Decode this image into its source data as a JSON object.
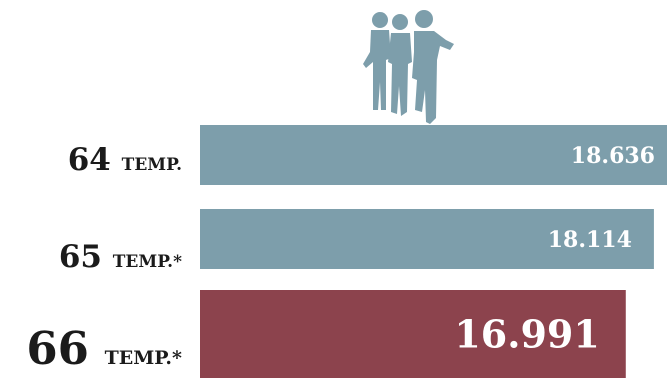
{
  "chart_data": {
    "type": "bar",
    "orientation": "horizontal",
    "categories": [
      {
        "num": "64",
        "suffix": "TEMP."
      },
      {
        "num": "65",
        "suffix": "TEMP.*"
      },
      {
        "num": "66",
        "suffix": "TEMP.*"
      }
    ],
    "values": [
      18636,
      18114,
      16991
    ],
    "value_labels": [
      "18.636",
      "18.114",
      "16.991"
    ],
    "colors": [
      "#7d9eab",
      "#7d9eab",
      "#8c434d"
    ],
    "title": "",
    "xlabel": "",
    "ylabel": "",
    "grid": false,
    "legend": "none"
  },
  "decoration": {
    "icon": "family-silhouette-icon",
    "icon_color": "#7d9eab"
  }
}
